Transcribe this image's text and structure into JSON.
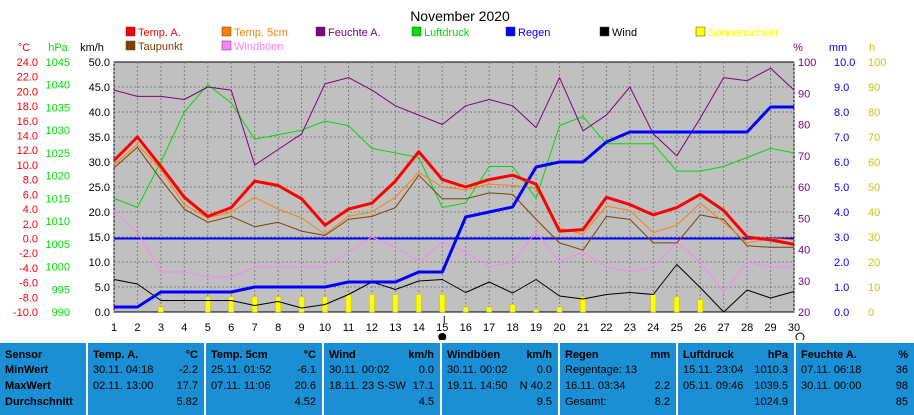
{
  "chart_data": {
    "type": "line",
    "title": "November 2020",
    "x": [
      1,
      2,
      3,
      4,
      5,
      6,
      7,
      8,
      9,
      10,
      11,
      12,
      13,
      14,
      15,
      16,
      17,
      18,
      19,
      20,
      21,
      22,
      23,
      24,
      25,
      26,
      27,
      28,
      29,
      30
    ],
    "xlim": [
      1,
      30
    ],
    "marker_label": "I",
    "axes": {
      "temp": {
        "unit": "°C",
        "ylim": [
          -10,
          24
        ],
        "ticks": [
          "24.0",
          "22.0",
          "20.0",
          "18.0",
          "16.0",
          "14.0",
          "12.0",
          "10.0",
          "8.0",
          "6.0",
          "4.0",
          "2.0",
          "0.0",
          "-2.0",
          "-4.0",
          "-6.0",
          "-8.0",
          "-10.0"
        ]
      },
      "hpa": {
        "unit": "hPa",
        "ylim": [
          990,
          1045
        ],
        "ticks": [
          "1045",
          "1040",
          "1035",
          "1030",
          "1025",
          "1020",
          "1015",
          "1010",
          "1005",
          "1000",
          "995",
          "990"
        ]
      },
      "kmh": {
        "unit": "km/h",
        "ylim": [
          0,
          50
        ],
        "ticks": [
          "50.0",
          "45.0",
          "40.0",
          "35.0",
          "30.0",
          "25.0",
          "20.0",
          "15.0",
          "10.0",
          "5.0",
          "0.0"
        ]
      },
      "pct": {
        "unit": "%",
        "ylim": [
          20,
          100
        ],
        "ticks": [
          "100",
          "90",
          "80",
          "70",
          "60",
          "50",
          "40",
          "30",
          "20"
        ]
      },
      "mm": {
        "unit": "mm",
        "ylim": [
          0,
          10
        ],
        "ticks": [
          "10.0",
          "9.0",
          "8.0",
          "7.0",
          "6.0",
          "5.0",
          "4.0",
          "3.0",
          "2.0",
          "1.0",
          "0.0"
        ]
      },
      "h": {
        "unit": "h",
        "ylim": [
          0,
          100
        ],
        "ticks": [
          "100",
          "90",
          "80",
          "70",
          "60",
          "50",
          "40",
          "30",
          "20",
          "10",
          "0"
        ]
      }
    },
    "legend": [
      {
        "name": "Temp. A.",
        "color": "#ff0000"
      },
      {
        "name": "Temp. 5cm",
        "color": "#ff8000"
      },
      {
        "name": "Feuchte A.",
        "color": "#800080"
      },
      {
        "name": "Luftdruck",
        "color": "#00dd00"
      },
      {
        "name": "Regen",
        "color": "#0000ff"
      },
      {
        "name": "Wind",
        "color": "#000000"
      },
      {
        "name": "Sonnenschein",
        "color": "#ffff00"
      },
      {
        "name": "Taupunkt",
        "color": "#804000"
      },
      {
        "name": "Windböen",
        "color": "#ff80ff"
      }
    ],
    "series": [
      {
        "name": "Temp. A.",
        "axis": "temp",
        "color": "#ff0000",
        "width": 3,
        "values": [
          10.6,
          13.8,
          9.8,
          5.6,
          3.0,
          4.2,
          7.8,
          7.2,
          5.4,
          1.8,
          4.0,
          4.8,
          7.8,
          11.8,
          8.0,
          7.0,
          8.0,
          8.6,
          7.4,
          1.0,
          1.2,
          5.6,
          4.6,
          3.2,
          4.2,
          6.0,
          3.8,
          0.2,
          -0.2,
          -0.8
        ]
      },
      {
        "name": "Temp. 5cm",
        "axis": "temp",
        "color": "#ff8000",
        "width": 1,
        "values": [
          10.0,
          12.8,
          9.4,
          4.6,
          2.8,
          3.6,
          5.6,
          4.0,
          2.8,
          0.6,
          3.0,
          3.6,
          5.6,
          9.0,
          7.0,
          6.6,
          7.4,
          7.2,
          6.8,
          1.4,
          0.6,
          4.4,
          3.8,
          0.8,
          1.8,
          4.8,
          2.2,
          -0.6,
          0,
          -0.2
        ]
      },
      {
        "name": "Taupunkt",
        "axis": "temp",
        "color": "#804000",
        "width": 1,
        "values": [
          9.6,
          12.4,
          8.0,
          4.0,
          2.2,
          3.0,
          1.6,
          2.2,
          1.0,
          0.4,
          2.6,
          3.0,
          4.2,
          8.6,
          5.4,
          5.4,
          6.2,
          6.0,
          2.6,
          -0.6,
          -1.6,
          3.0,
          2.6,
          -0.6,
          -0.6,
          3.2,
          2.6,
          -1.0,
          -1.2,
          -1.2
        ]
      },
      {
        "name": "Feuchte A.",
        "axis": "pct",
        "color": "#800080",
        "width": 1,
        "values": [
          91,
          89,
          89,
          88,
          92,
          91,
          67,
          72,
          77,
          93,
          95,
          91,
          86,
          83,
          80,
          86,
          88,
          86,
          79,
          95,
          78,
          83,
          92,
          77,
          70,
          82,
          95,
          94,
          98,
          91
        ]
      },
      {
        "name": "Luftdruck",
        "axis": "hpa",
        "color": "#00dd00",
        "width": 1,
        "values": [
          1015,
          1013,
          1023,
          1034,
          1040,
          1036,
          1028,
          1029,
          1030,
          1032,
          1031,
          1026,
          1025,
          1024,
          1013,
          1014,
          1022,
          1022,
          1015,
          1031,
          1033,
          1027,
          1027,
          1027,
          1021,
          1021,
          1022,
          1024,
          1026,
          1025
        ]
      },
      {
        "name": "Regen",
        "axis": "mm",
        "color": "#0000ff",
        "width": 3,
        "values": [
          0.2,
          0.2,
          0.8,
          0.8,
          0.8,
          0.8,
          1.0,
          1.0,
          1.0,
          1.0,
          1.2,
          1.2,
          1.2,
          1.6,
          1.6,
          3.8,
          4.0,
          4.2,
          5.8,
          6.0,
          6.0,
          6.8,
          7.2,
          7.2,
          7.2,
          7.2,
          7.2,
          7.2,
          8.2,
          8.2
        ]
      },
      {
        "name": "Wind",
        "axis": "kmh",
        "color": "#000000",
        "width": 1,
        "values": [
          6.5,
          5.6,
          2.3,
          2.3,
          2.3,
          2.3,
          1.3,
          2.1,
          0.8,
          1.5,
          3.5,
          6.0,
          4.5,
          6.2,
          6.5,
          3.9,
          6.0,
          3.8,
          6.5,
          3.2,
          2.6,
          3.5,
          3.9,
          3.5,
          9.5,
          4.9,
          0.0,
          4.4,
          2.8,
          4.1
        ]
      },
      {
        "name": "Windböen",
        "axis": "kmh",
        "color": "#ff80ff",
        "width": 1,
        "values": [
          20,
          16,
          8,
          8,
          7,
          7,
          9,
          9,
          9,
          9,
          12,
          15,
          13,
          10,
          14,
          12,
          9,
          10,
          16,
          10,
          12,
          9,
          8,
          9,
          14,
          10,
          4,
          10,
          9,
          9
        ]
      }
    ],
    "bars": {
      "name": "Sonnenschein",
      "axis": "h",
      "color": "#ffff00",
      "values": [
        0,
        0,
        2,
        0,
        6,
        6,
        6,
        6,
        6,
        6,
        7,
        7,
        7,
        7,
        7,
        2,
        2,
        3,
        1,
        2,
        6,
        0,
        0,
        7,
        6,
        5,
        0,
        0,
        0,
        0
      ]
    },
    "reference_line": {
      "axis": "temp",
      "value": 0.0,
      "color": "#0000ff"
    }
  },
  "stats": {
    "row_labels": {
      "sensor": "Sensor",
      "min": "MinWert",
      "max": "MaxWert",
      "avg": "Durchschnitt"
    },
    "columns": [
      {
        "title": "Temp. A.",
        "unit": "°C",
        "min_date": "30.11. 04:18",
        "min_val": "-2.2",
        "max_date": "02.11. 13:00",
        "max_val": "17.7",
        "avg_date": "",
        "avg_val": "5.82"
      },
      {
        "title": "Temp. 5cm",
        "unit": "°C",
        "min_date": "25.11. 01:52",
        "min_val": "-6.1",
        "max_date": "07.11. 11:06",
        "max_val": "20.6",
        "avg_date": "",
        "avg_val": "4.52"
      },
      {
        "title": "Wind",
        "unit": "km/h",
        "min_date": "30.11. 00:02",
        "min_val": "0.0",
        "max_date": "18.11. 23 S-SW",
        "max_val": "17.1",
        "avg_date": "",
        "avg_val": "4.5"
      },
      {
        "title": "Windböen",
        "unit": "km/h",
        "min_date": "30.11. 00:02",
        "min_val": "0.0",
        "max_date": "19.11. 14:50",
        "max_val": "N 40.2",
        "avg_date": "",
        "avg_val": "9.5"
      },
      {
        "title": "Regen",
        "unit": "mm",
        "min_date": "Regentage: 13",
        "min_val": "",
        "max_date": "16.11. 03:34",
        "max_val": "2.2",
        "avg_date": "Gesamt:",
        "avg_val": "8.2"
      },
      {
        "title": "Luftdruck",
        "unit": "hPa",
        "min_date": "15.11. 23:04",
        "min_val": "1010.3",
        "max_date": "05.11. 09:46",
        "max_val": "1039.5",
        "avg_date": "",
        "avg_val": "1024.9"
      },
      {
        "title": "Feuchte A.",
        "unit": "%",
        "min_date": "07.11. 06:18",
        "min_val": "36",
        "max_date": "30.11. 00:00",
        "max_val": "98",
        "avg_date": "",
        "avg_val": "85"
      }
    ]
  }
}
